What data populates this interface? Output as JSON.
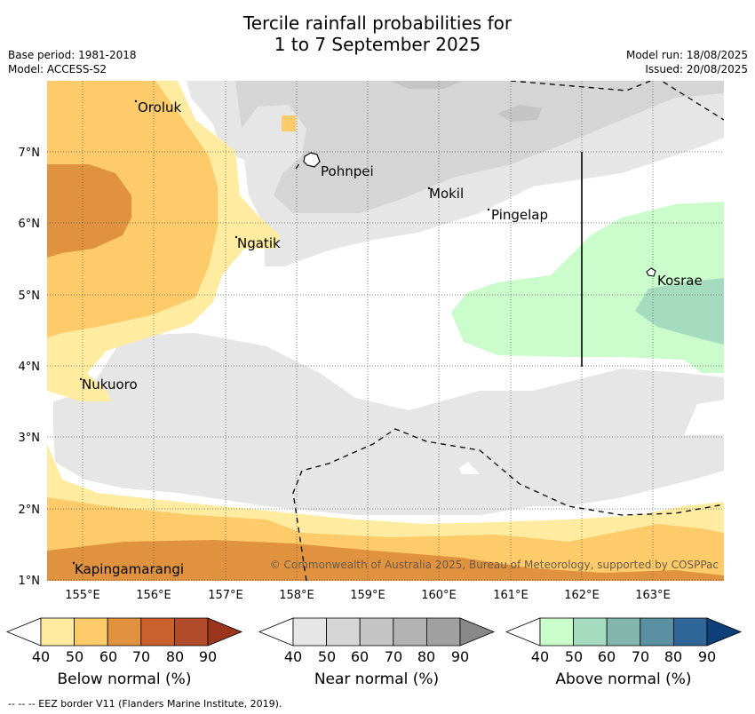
{
  "header": {
    "title_line1": "Tercile rainfall probabilities for",
    "title_line2": "1 to 7 September 2025",
    "base_period": "Base period: 1981-2018",
    "model": "Model: ACCESS-S2",
    "model_run": "Model run: 18/08/2025",
    "issued": "Issued: 20/08/2025"
  },
  "map": {
    "lon_ticks": [
      "155°E",
      "156°E",
      "157°E",
      "158°E",
      "159°E",
      "160°E",
      "161°E",
      "162°E",
      "163°E"
    ],
    "lat_ticks": [
      "7°N",
      "6°N",
      "5°N",
      "4°N",
      "3°N",
      "2°N",
      "1°N"
    ],
    "places": [
      "Oroluk",
      "Pohnpei",
      "Mokil",
      "Pingelap",
      "Ngatik",
      "Kosrae",
      "Nukuoro",
      "Kapingamarangi"
    ],
    "copyright": "© Commonwealth of Australia 2025, Bureau of Meteorology, supported by COSPPac"
  },
  "legend": {
    "ticks": [
      "40",
      "50",
      "60",
      "70",
      "80",
      "90"
    ],
    "below": {
      "label": "Below normal (%)",
      "colors": [
        "#ffeca0",
        "#fdcb6a",
        "#e0923f",
        "#c9602e",
        "#b24b29",
        "#98351b"
      ]
    },
    "near": {
      "label": "Near normal (%)",
      "colors": [
        "#e6e6e6",
        "#d5d5d5",
        "#c5c5c5",
        "#b3b3b3",
        "#a0a0a0",
        "#888888"
      ]
    },
    "above": {
      "label": "Above normal (%)",
      "colors": [
        "#cbfccb",
        "#a5dcc0",
        "#82b6ad",
        "#5a91a2",
        "#2f6698",
        "#0d3f78"
      ]
    }
  },
  "footer": "--  --  -- EEZ border V11 (Flanders Marine Institute, 2019)."
}
